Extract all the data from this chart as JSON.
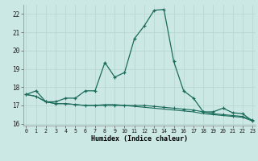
{
  "xlabel": "Humidex (Indice chaleur)",
  "x": [
    0,
    1,
    2,
    3,
    4,
    5,
    6,
    7,
    8,
    9,
    10,
    11,
    12,
    13,
    14,
    15,
    16,
    17,
    18,
    19,
    20,
    21,
    22,
    23
  ],
  "line1": [
    17.6,
    17.8,
    17.2,
    17.2,
    17.4,
    17.4,
    17.8,
    17.8,
    19.35,
    18.55,
    18.8,
    20.65,
    21.35,
    22.2,
    22.25,
    19.4,
    17.8,
    17.4,
    16.65,
    16.65,
    16.85,
    16.6,
    16.55,
    16.15
  ],
  "line2": [
    17.6,
    17.5,
    17.2,
    17.1,
    17.1,
    17.05,
    17.0,
    17.0,
    17.0,
    17.0,
    17.0,
    17.0,
    17.0,
    16.95,
    16.9,
    16.85,
    16.8,
    16.75,
    16.65,
    16.55,
    16.5,
    16.45,
    16.4,
    16.2
  ],
  "line3": [
    17.6,
    17.5,
    17.2,
    17.1,
    17.1,
    17.05,
    17.0,
    17.0,
    17.05,
    17.05,
    17.0,
    16.95,
    16.9,
    16.85,
    16.8,
    16.75,
    16.7,
    16.65,
    16.55,
    16.5,
    16.45,
    16.4,
    16.35,
    16.15
  ],
  "line_color": "#1a6b5a",
  "bg_color": "#cce8e4",
  "grid_color": "#b8d8d4",
  "ylim": [
    15.9,
    22.5
  ],
  "yticks": [
    16,
    17,
    18,
    19,
    20,
    21,
    22
  ],
  "xticks": [
    0,
    1,
    2,
    3,
    4,
    5,
    6,
    7,
    8,
    9,
    10,
    11,
    12,
    13,
    14,
    15,
    16,
    17,
    18,
    19,
    20,
    21,
    22,
    23
  ],
  "xlim": [
    -0.3,
    23.3
  ]
}
